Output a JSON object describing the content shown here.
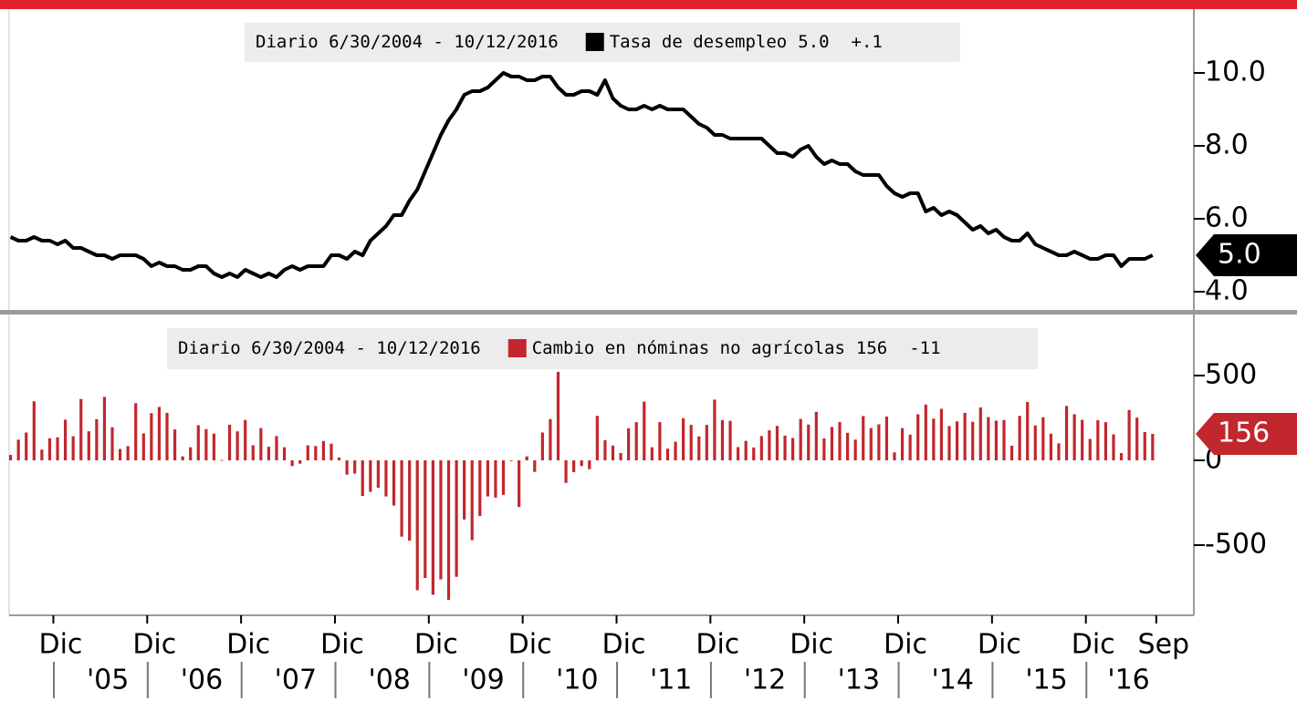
{
  "x_axis": {
    "x": [
      "2004-07",
      "2004-08",
      "2004-09",
      "2004-10",
      "2004-11",
      "2004-12",
      "2005-01",
      "2005-02",
      "2005-03",
      "2005-04",
      "2005-05",
      "2005-06",
      "2005-07",
      "2005-08",
      "2005-09",
      "2005-10",
      "2005-11",
      "2005-12",
      "2006-01",
      "2006-02",
      "2006-03",
      "2006-04",
      "2006-05",
      "2006-06",
      "2006-07",
      "2006-08",
      "2006-09",
      "2006-10",
      "2006-11",
      "2006-12",
      "2007-01",
      "2007-02",
      "2007-03",
      "2007-04",
      "2007-05",
      "2007-06",
      "2007-07",
      "2007-08",
      "2007-09",
      "2007-10",
      "2007-11",
      "2007-12",
      "2008-01",
      "2008-02",
      "2008-03",
      "2008-04",
      "2008-05",
      "2008-06",
      "2008-07",
      "2008-08",
      "2008-09",
      "2008-10",
      "2008-11",
      "2008-12",
      "2009-01",
      "2009-02",
      "2009-03",
      "2009-04",
      "2009-05",
      "2009-06",
      "2009-07",
      "2009-08",
      "2009-09",
      "2009-10",
      "2009-11",
      "2009-12",
      "2010-01",
      "2010-02",
      "2010-03",
      "2010-04",
      "2010-05",
      "2010-06",
      "2010-07",
      "2010-08",
      "2010-09",
      "2010-10",
      "2010-11",
      "2010-12",
      "2011-01",
      "2011-02",
      "2011-03",
      "2011-04",
      "2011-05",
      "2011-06",
      "2011-07",
      "2011-08",
      "2011-09",
      "2011-10",
      "2011-11",
      "2011-12",
      "2012-01",
      "2012-02",
      "2012-03",
      "2012-04",
      "2012-05",
      "2012-06",
      "2012-07",
      "2012-08",
      "2012-09",
      "2012-10",
      "2012-11",
      "2012-12",
      "2013-01",
      "2013-02",
      "2013-03",
      "2013-04",
      "2013-05",
      "2013-06",
      "2013-07",
      "2013-08",
      "2013-09",
      "2013-10",
      "2013-11",
      "2013-12",
      "2014-01",
      "2014-02",
      "2014-03",
      "2014-04",
      "2014-05",
      "2014-06",
      "2014-07",
      "2014-08",
      "2014-09",
      "2014-10",
      "2014-11",
      "2014-12",
      "2015-01",
      "2015-02",
      "2015-03",
      "2015-04",
      "2015-05",
      "2015-06",
      "2015-07",
      "2015-08",
      "2015-09",
      "2015-10",
      "2015-11",
      "2015-12",
      "2016-01",
      "2016-02",
      "2016-03",
      "2016-04",
      "2016-05",
      "2016-06",
      "2016-07",
      "2016-08",
      "2016-09"
    ],
    "xticks": [
      {
        "value": "2004-12",
        "label": "Dic"
      },
      {
        "value": "2005-12",
        "label": "Dic"
      },
      {
        "value": "2006-12",
        "label": "Dic"
      },
      {
        "value": "2007-12",
        "label": "Dic"
      },
      {
        "value": "2008-12",
        "label": "Dic"
      },
      {
        "value": "2009-12",
        "label": "Dic"
      },
      {
        "value": "2010-12",
        "label": "Dic"
      },
      {
        "value": "2011-12",
        "label": "Dic"
      },
      {
        "value": "2012-12",
        "label": "Dic"
      },
      {
        "value": "2013-12",
        "label": "Dic"
      },
      {
        "value": "2014-12",
        "label": "Dic"
      },
      {
        "value": "2015-12",
        "label": "Dic"
      },
      {
        "value": "2016-09",
        "label": "Sep"
      }
    ],
    "year_labels": [
      {
        "value": "2005",
        "label": "'05"
      },
      {
        "value": "2006",
        "label": "'06"
      },
      {
        "value": "2007",
        "label": "'07"
      },
      {
        "value": "2008",
        "label": "'08"
      },
      {
        "value": "2009",
        "label": "'09"
      },
      {
        "value": "2010",
        "label": "'10"
      },
      {
        "value": "2011",
        "label": "'11"
      },
      {
        "value": "2012",
        "label": "'12"
      },
      {
        "value": "2013",
        "label": "'13"
      },
      {
        "value": "2014",
        "label": "'14"
      },
      {
        "value": "2015",
        "label": "'15"
      },
      {
        "value": "2016",
        "label": "'16"
      }
    ]
  },
  "chart_data": [
    {
      "type": "line",
      "header": "Diario 6/30/2004 - 10/12/2016",
      "series": [
        {
          "name": "Tasa de desempleo",
          "color": "#000000",
          "last_value_label": "5.0",
          "change": "+.1",
          "values": [
            5.5,
            5.4,
            5.4,
            5.5,
            5.4,
            5.4,
            5.3,
            5.4,
            5.2,
            5.2,
            5.1,
            5.0,
            5.0,
            4.9,
            5.0,
            5.0,
            5.0,
            4.9,
            4.7,
            4.8,
            4.7,
            4.7,
            4.6,
            4.6,
            4.7,
            4.7,
            4.5,
            4.4,
            4.5,
            4.4,
            4.6,
            4.5,
            4.4,
            4.5,
            4.4,
            4.6,
            4.7,
            4.6,
            4.7,
            4.7,
            4.7,
            5.0,
            5.0,
            4.9,
            5.1,
            5.0,
            5.4,
            5.6,
            5.8,
            6.1,
            6.1,
            6.5,
            6.8,
            7.3,
            7.8,
            8.3,
            8.7,
            9.0,
            9.4,
            9.5,
            9.5,
            9.6,
            9.8,
            10.0,
            9.9,
            9.9,
            9.8,
            9.8,
            9.9,
            9.9,
            9.6,
            9.4,
            9.4,
            9.5,
            9.5,
            9.4,
            9.8,
            9.3,
            9.1,
            9.0,
            9.0,
            9.1,
            9.0,
            9.1,
            9.0,
            9.0,
            9.0,
            8.8,
            8.6,
            8.5,
            8.3,
            8.3,
            8.2,
            8.2,
            8.2,
            8.2,
            8.2,
            8.0,
            7.8,
            7.8,
            7.7,
            7.9,
            8.0,
            7.7,
            7.5,
            7.6,
            7.5,
            7.5,
            7.3,
            7.2,
            7.2,
            7.2,
            6.9,
            6.7,
            6.6,
            6.7,
            6.7,
            6.2,
            6.3,
            6.1,
            6.2,
            6.1,
            5.9,
            5.7,
            5.8,
            5.6,
            5.7,
            5.5,
            5.4,
            5.4,
            5.6,
            5.3,
            5.2,
            5.1,
            5.0,
            5.0,
            5.1,
            5.0,
            4.9,
            4.9,
            5.0,
            5.0,
            4.7,
            4.9,
            4.9,
            4.9,
            5.0
          ]
        }
      ],
      "ylim": [
        3.5,
        11.75
      ],
      "yticks": [
        {
          "value": 4,
          "label": "4.0"
        },
        {
          "value": 6,
          "label": "6.0"
        },
        {
          "value": 8,
          "label": "8.0"
        },
        {
          "value": 10,
          "label": "10.0"
        }
      ]
    },
    {
      "type": "bar",
      "header": "Diario 6/30/2004 - 10/12/2016",
      "series": [
        {
          "name": "Cambio en nóminas no agrícolas",
          "color": "#c1272d",
          "change": "-11",
          "values": [
            32,
            122,
            164,
            348,
            63,
            130,
            136,
            240,
            142,
            362,
            171,
            243,
            374,
            195,
            67,
            84,
            337,
            159,
            278,
            315,
            280,
            182,
            23,
            77,
            207,
            184,
            157,
            2,
            210,
            171,
            238,
            89,
            190,
            80,
            143,
            77,
            -34,
            -20,
            88,
            84,
            114,
            98,
            17,
            -84,
            -78,
            -210,
            -186,
            -162,
            -213,
            -267,
            -450,
            -474,
            -766,
            -694,
            -793,
            -702,
            -823,
            -687,
            -349,
            -471,
            -329,
            -213,
            -220,
            -204,
            -2,
            -275,
            23,
            -68,
            164,
            243,
            522,
            -133,
            -70,
            -34,
            -52,
            262,
            119,
            87,
            43,
            189,
            225,
            346,
            77,
            225,
            69,
            110,
            248,
            209,
            141,
            209,
            358,
            237,
            233,
            78,
            115,
            76,
            143,
            177,
            203,
            146,
            132,
            244,
            211,
            286,
            130,
            197,
            226,
            162,
            122,
            261,
            190,
            212,
            258,
            47,
            190,
            151,
            272,
            329,
            246,
            304,
            202,
            230,
            280,
            227,
            312,
            255,
            234,
            238,
            86,
            262,
            344,
            206,
            254,
            157,
            100,
            321,
            272,
            239,
            126,
            237,
            225,
            153,
            43,
            297,
            252,
            167,
            156
          ]
        }
      ],
      "ylim": [
        -914,
        860
      ],
      "yticks": [
        -500,
        0,
        500
      ]
    }
  ]
}
